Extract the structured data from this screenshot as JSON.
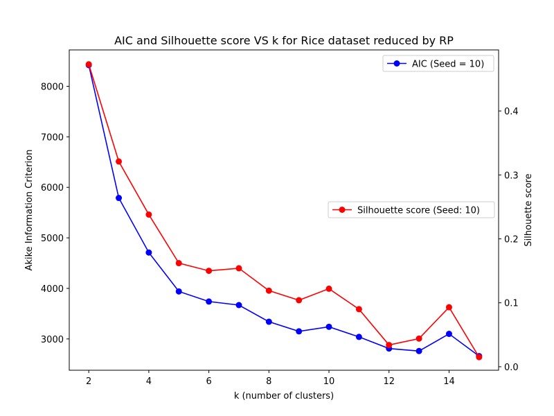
{
  "chart_data": {
    "type": "line",
    "title": "AIC and Silhouette score VS k for Rice dataset reduced by RP",
    "xlabel": "k (number of clusters)",
    "ylabel_left": "Akike Information Criterion",
    "ylabel_right": "Silhouette score",
    "x": [
      2,
      3,
      4,
      5,
      6,
      7,
      8,
      9,
      10,
      11,
      12,
      13,
      14,
      15
    ],
    "x_ticks": [
      2,
      4,
      6,
      8,
      10,
      12,
      14
    ],
    "xlim": [
      1.35,
      15.65
    ],
    "y_left_ticks": [
      3000,
      4000,
      5000,
      6000,
      7000,
      8000
    ],
    "ylim_left": [
      2380,
      8720
    ],
    "y_right_ticks": [
      0.0,
      0.1,
      0.2,
      0.3,
      0.4
    ],
    "ylim_right": [
      -0.0055,
      0.4955
    ],
    "grid": false,
    "series": [
      {
        "name": "AIC (Seed = 10)",
        "axis": "left",
        "color": "#0000ff",
        "legend_position": "top-right",
        "values": [
          8420,
          5790,
          4710,
          3940,
          3740,
          3670,
          3340,
          3150,
          3240,
          3040,
          2810,
          2760,
          3100,
          2660
        ]
      },
      {
        "name": "Silhouette score (Seed: 10)",
        "axis": "right",
        "color": "#ff0000",
        "legend_position": "center-right",
        "values": [
          0.473,
          0.321,
          0.238,
          0.162,
          0.15,
          0.154,
          0.119,
          0.104,
          0.122,
          0.09,
          0.034,
          0.044,
          0.093,
          0.015
        ]
      }
    ]
  }
}
